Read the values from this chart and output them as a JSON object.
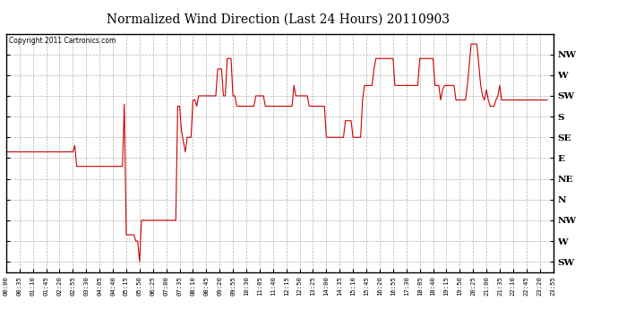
{
  "title": "Normalized Wind Direction (Last 24 Hours) 20110903",
  "copyright_text": "Copyright 2011 Cartronics.com",
  "background_color": "#ffffff",
  "line_color": "#cc0000",
  "grid_color": "#aaaaaa",
  "ytick_labels": [
    "NW",
    "W",
    "SW",
    "S",
    "SE",
    "E",
    "NE",
    "N",
    "NW",
    "W",
    "SW"
  ],
  "ytick_values": [
    10,
    9,
    8,
    7,
    6,
    5,
    4,
    3,
    2,
    1,
    0
  ],
  "ylim": [
    -0.5,
    11.0
  ],
  "xtick_labels": [
    "00:00",
    "00:35",
    "01:10",
    "01:45",
    "02:20",
    "02:55",
    "03:30",
    "04:05",
    "04:40",
    "05:15",
    "05:50",
    "06:25",
    "07:00",
    "07:35",
    "08:10",
    "08:45",
    "09:20",
    "09:55",
    "10:30",
    "11:05",
    "11:40",
    "12:15",
    "12:50",
    "13:25",
    "14:00",
    "14:35",
    "15:10",
    "15:45",
    "16:20",
    "16:55",
    "17:30",
    "18:05",
    "18:40",
    "19:15",
    "19:50",
    "20:25",
    "21:00",
    "21:35",
    "22:10",
    "22:45",
    "23:20",
    "23:55"
  ],
  "wind_data": [
    [
      0,
      5.3
    ],
    [
      1,
      5.3
    ],
    [
      2,
      5.3
    ],
    [
      3,
      5.3
    ],
    [
      4,
      5.3
    ],
    [
      5,
      5.3
    ],
    [
      6,
      5.3
    ],
    [
      7,
      5.3
    ],
    [
      8,
      5.3
    ],
    [
      9,
      5.3
    ],
    [
      10,
      5.3
    ],
    [
      11,
      5.3
    ],
    [
      12,
      5.3
    ],
    [
      13,
      5.3
    ],
    [
      14,
      5.3
    ],
    [
      15,
      5.3
    ],
    [
      16,
      5.3
    ],
    [
      17,
      5.3
    ],
    [
      18,
      5.3
    ],
    [
      19,
      5.3
    ],
    [
      20,
      5.3
    ],
    [
      21,
      5.3
    ],
    [
      22,
      5.3
    ],
    [
      23,
      5.3
    ],
    [
      24,
      5.3
    ],
    [
      25,
      5.3
    ],
    [
      26,
      5.3
    ],
    [
      27,
      5.3
    ],
    [
      28,
      5.3
    ],
    [
      29,
      5.3
    ],
    [
      30,
      5.3
    ],
    [
      31,
      5.3
    ],
    [
      32,
      5.3
    ],
    [
      33,
      5.3
    ],
    [
      34,
      5.3
    ],
    [
      35,
      5.3
    ],
    [
      36,
      5.6
    ],
    [
      37,
      4.6
    ],
    [
      38,
      4.6
    ],
    [
      39,
      4.6
    ],
    [
      40,
      4.6
    ],
    [
      41,
      4.6
    ],
    [
      42,
      4.6
    ],
    [
      43,
      4.6
    ],
    [
      44,
      4.6
    ],
    [
      45,
      4.6
    ],
    [
      46,
      4.6
    ],
    [
      47,
      4.6
    ],
    [
      48,
      4.6
    ],
    [
      49,
      4.6
    ],
    [
      50,
      4.6
    ],
    [
      51,
      4.6
    ],
    [
      52,
      4.6
    ],
    [
      53,
      4.6
    ],
    [
      54,
      4.6
    ],
    [
      55,
      4.6
    ],
    [
      56,
      4.6
    ],
    [
      57,
      4.6
    ],
    [
      58,
      4.6
    ],
    [
      59,
      4.6
    ],
    [
      60,
      4.6
    ],
    [
      61,
      4.6
    ],
    [
      62,
      7.6
    ],
    [
      63,
      1.3
    ],
    [
      64,
      1.3
    ],
    [
      65,
      1.3
    ],
    [
      66,
      1.3
    ],
    [
      67,
      1.3
    ],
    [
      68,
      1.0
    ],
    [
      69,
      1.0
    ],
    [
      70,
      0.0
    ],
    [
      71,
      2.0
    ],
    [
      72,
      2.0
    ],
    [
      73,
      2.0
    ],
    [
      74,
      2.0
    ],
    [
      75,
      2.0
    ],
    [
      76,
      2.0
    ],
    [
      77,
      2.0
    ],
    [
      78,
      2.0
    ],
    [
      79,
      2.0
    ],
    [
      80,
      2.0
    ],
    [
      81,
      2.0
    ],
    [
      82,
      2.0
    ],
    [
      83,
      2.0
    ],
    [
      84,
      2.0
    ],
    [
      85,
      2.0
    ],
    [
      86,
      2.0
    ],
    [
      87,
      2.0
    ],
    [
      88,
      2.0
    ],
    [
      89,
      2.0
    ],
    [
      90,
      7.5
    ],
    [
      91,
      7.5
    ],
    [
      92,
      6.3
    ],
    [
      93,
      5.8
    ],
    [
      94,
      5.3
    ],
    [
      95,
      6.0
    ],
    [
      96,
      6.0
    ],
    [
      97,
      6.0
    ],
    [
      98,
      7.8
    ],
    [
      99,
      7.8
    ],
    [
      100,
      7.5
    ],
    [
      101,
      8.0
    ],
    [
      102,
      8.0
    ],
    [
      103,
      8.0
    ],
    [
      104,
      8.0
    ],
    [
      105,
      8.0
    ],
    [
      106,
      8.0
    ],
    [
      107,
      8.0
    ],
    [
      108,
      8.0
    ],
    [
      109,
      8.0
    ],
    [
      110,
      8.0
    ],
    [
      111,
      9.3
    ],
    [
      112,
      9.3
    ],
    [
      113,
      9.3
    ],
    [
      114,
      8.0
    ],
    [
      115,
      8.0
    ],
    [
      116,
      9.8
    ],
    [
      117,
      9.8
    ],
    [
      118,
      9.8
    ],
    [
      119,
      8.0
    ],
    [
      120,
      8.0
    ],
    [
      121,
      7.5
    ],
    [
      122,
      7.5
    ],
    [
      123,
      7.5
    ],
    [
      124,
      7.5
    ],
    [
      125,
      7.5
    ],
    [
      126,
      7.5
    ],
    [
      127,
      7.5
    ],
    [
      128,
      7.5
    ],
    [
      129,
      7.5
    ],
    [
      130,
      7.5
    ],
    [
      131,
      8.0
    ],
    [
      132,
      8.0
    ],
    [
      133,
      8.0
    ],
    [
      134,
      8.0
    ],
    [
      135,
      8.0
    ],
    [
      136,
      7.5
    ],
    [
      137,
      7.5
    ],
    [
      138,
      7.5
    ],
    [
      139,
      7.5
    ],
    [
      140,
      7.5
    ],
    [
      141,
      7.5
    ],
    [
      142,
      7.5
    ],
    [
      143,
      7.5
    ],
    [
      144,
      7.5
    ],
    [
      145,
      7.5
    ],
    [
      146,
      7.5
    ],
    [
      147,
      7.5
    ],
    [
      148,
      7.5
    ],
    [
      149,
      7.5
    ],
    [
      150,
      7.5
    ],
    [
      151,
      8.5
    ],
    [
      152,
      8.0
    ],
    [
      153,
      8.0
    ],
    [
      154,
      8.0
    ],
    [
      155,
      8.0
    ],
    [
      156,
      8.0
    ],
    [
      157,
      8.0
    ],
    [
      158,
      8.0
    ],
    [
      159,
      7.5
    ],
    [
      160,
      7.5
    ],
    [
      161,
      7.5
    ],
    [
      162,
      7.5
    ],
    [
      163,
      7.5
    ],
    [
      164,
      7.5
    ],
    [
      165,
      7.5
    ],
    [
      166,
      7.5
    ],
    [
      167,
      7.5
    ],
    [
      168,
      6.0
    ],
    [
      169,
      6.0
    ],
    [
      170,
      6.0
    ],
    [
      171,
      6.0
    ],
    [
      172,
      6.0
    ],
    [
      173,
      6.0
    ],
    [
      174,
      6.0
    ],
    [
      175,
      6.0
    ],
    [
      176,
      6.0
    ],
    [
      177,
      6.0
    ],
    [
      178,
      6.8
    ],
    [
      179,
      6.8
    ],
    [
      180,
      6.8
    ],
    [
      181,
      6.8
    ],
    [
      182,
      6.0
    ],
    [
      183,
      6.0
    ],
    [
      184,
      6.0
    ],
    [
      185,
      6.0
    ],
    [
      186,
      6.0
    ],
    [
      187,
      7.8
    ],
    [
      188,
      8.5
    ],
    [
      189,
      8.5
    ],
    [
      190,
      8.5
    ],
    [
      191,
      8.5
    ],
    [
      192,
      8.5
    ],
    [
      193,
      9.3
    ],
    [
      194,
      9.8
    ],
    [
      195,
      9.8
    ],
    [
      196,
      9.8
    ],
    [
      197,
      9.8
    ],
    [
      198,
      9.8
    ],
    [
      199,
      9.8
    ],
    [
      200,
      9.8
    ],
    [
      201,
      9.8
    ],
    [
      202,
      9.8
    ],
    [
      203,
      9.8
    ],
    [
      204,
      8.5
    ],
    [
      205,
      8.5
    ],
    [
      206,
      8.5
    ],
    [
      207,
      8.5
    ],
    [
      208,
      8.5
    ],
    [
      209,
      8.5
    ],
    [
      210,
      8.5
    ],
    [
      211,
      8.5
    ],
    [
      212,
      8.5
    ],
    [
      213,
      8.5
    ],
    [
      214,
      8.5
    ],
    [
      215,
      8.5
    ],
    [
      216,
      8.5
    ],
    [
      217,
      9.8
    ],
    [
      218,
      9.8
    ],
    [
      219,
      9.8
    ],
    [
      220,
      9.8
    ],
    [
      221,
      9.8
    ],
    [
      222,
      9.8
    ],
    [
      223,
      9.8
    ],
    [
      224,
      9.8
    ],
    [
      225,
      8.5
    ],
    [
      226,
      8.5
    ],
    [
      227,
      8.5
    ],
    [
      228,
      7.8
    ],
    [
      229,
      8.3
    ],
    [
      230,
      8.5
    ],
    [
      231,
      8.5
    ],
    [
      232,
      8.5
    ],
    [
      233,
      8.5
    ],
    [
      234,
      8.5
    ],
    [
      235,
      8.5
    ],
    [
      236,
      7.8
    ],
    [
      237,
      7.8
    ],
    [
      238,
      7.8
    ],
    [
      239,
      7.8
    ],
    [
      240,
      7.8
    ],
    [
      241,
      7.8
    ],
    [
      242,
      8.5
    ],
    [
      243,
      9.5
    ],
    [
      244,
      10.5
    ],
    [
      245,
      10.5
    ],
    [
      246,
      10.5
    ],
    [
      247,
      10.5
    ],
    [
      248,
      9.5
    ],
    [
      249,
      8.5
    ],
    [
      250,
      8.0
    ],
    [
      251,
      7.8
    ],
    [
      252,
      8.3
    ],
    [
      253,
      7.8
    ],
    [
      254,
      7.5
    ],
    [
      255,
      7.5
    ],
    [
      256,
      7.5
    ],
    [
      257,
      7.8
    ],
    [
      258,
      8.0
    ],
    [
      259,
      8.5
    ],
    [
      260,
      7.8
    ],
    [
      261,
      7.8
    ],
    [
      262,
      7.8
    ],
    [
      263,
      7.8
    ],
    [
      264,
      7.8
    ],
    [
      265,
      7.8
    ],
    [
      266,
      7.8
    ],
    [
      267,
      7.8
    ],
    [
      268,
      7.8
    ],
    [
      269,
      7.8
    ],
    [
      270,
      7.8
    ],
    [
      271,
      7.8
    ],
    [
      272,
      7.8
    ],
    [
      273,
      7.8
    ],
    [
      274,
      7.8
    ],
    [
      275,
      7.8
    ],
    [
      276,
      7.8
    ],
    [
      277,
      7.8
    ],
    [
      278,
      7.8
    ],
    [
      279,
      7.8
    ],
    [
      280,
      7.8
    ],
    [
      281,
      7.8
    ],
    [
      282,
      7.8
    ],
    [
      283,
      7.8
    ],
    [
      284,
      7.8
    ]
  ]
}
